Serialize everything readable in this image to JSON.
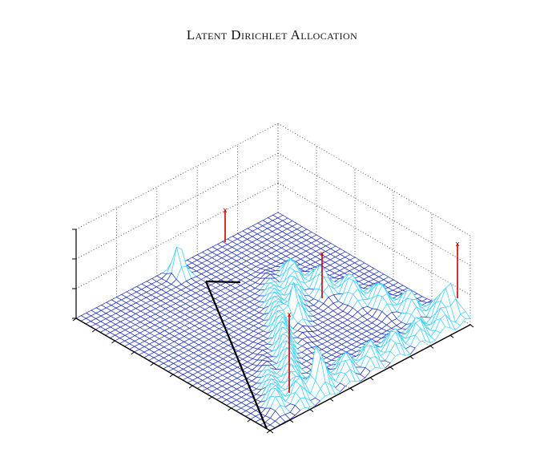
{
  "header": {
    "running_title": "Latent Dirichlet Allocation"
  },
  "figure": {
    "type": "3d-surface-plot",
    "surface_color": "#1f2fbf",
    "surface_highlight_color": "#3fd0ff",
    "grid_line_style": "dotted",
    "spike_color": "#cc0000",
    "spike_marker": "x",
    "spike_count": 4,
    "simplex_edge_color": "#000000"
  }
}
